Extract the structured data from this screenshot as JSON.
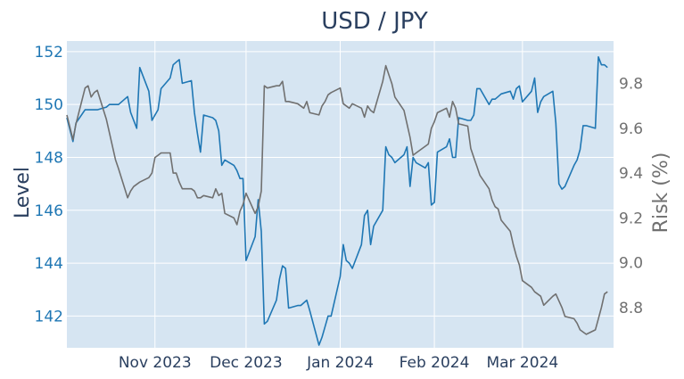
{
  "chart_data": {
    "type": "line",
    "title": "USD / JPY",
    "xlabel": "",
    "ylabel": "Level",
    "y2label": "Risk (%)",
    "grid": true,
    "x_range": [
      "2023-10-03",
      "2024-03-31"
    ],
    "ylim": [
      140.8,
      152.4
    ],
    "y2lim": [
      8.62,
      9.99
    ],
    "x_ticks": [
      {
        "date": "2023-11-01",
        "label": "Nov 2023"
      },
      {
        "date": "2023-12-01",
        "label": "Dec 2023"
      },
      {
        "date": "2024-01-01",
        "label": "Jan 2024"
      },
      {
        "date": "2024-02-01",
        "label": "Feb 2024"
      },
      {
        "date": "2024-03-01",
        "label": "Mar 2024"
      }
    ],
    "y_ticks": [
      142,
      144,
      146,
      148,
      150,
      152
    ],
    "y2_ticks": [
      8.8,
      9.0,
      9.2,
      9.4,
      9.6,
      9.8
    ],
    "y2_tick_labels": [
      "8.8",
      "9.0",
      "9.2",
      "9.4",
      "9.6",
      "9.8"
    ],
    "colors": {
      "level": "#1f77b4",
      "risk": "#707070",
      "plot_bg": "#d6e5f2",
      "grid": "#ffffff",
      "axis_text": "#2a3f5f",
      "level_text": "#1f77b4",
      "risk_text": "#707070"
    },
    "series": [
      {
        "axis": "left",
        "color": "#1f77b4",
        "x": [
          "2023-10-03",
          "2023-10-05",
          "2023-10-06",
          "2023-10-09",
          "2023-10-10",
          "2023-10-11",
          "2023-10-12",
          "2023-10-13",
          "2023-10-16",
          "2023-10-17",
          "2023-10-18",
          "2023-10-19",
          "2023-10-20",
          "2023-10-23",
          "2023-10-24",
          "2023-10-25",
          "2023-10-26",
          "2023-10-27",
          "2023-10-30",
          "2023-10-31",
          "2023-11-01",
          "2023-11-02",
          "2023-11-03",
          "2023-11-06",
          "2023-11-07",
          "2023-11-08",
          "2023-11-09",
          "2023-11-10",
          "2023-11-13",
          "2023-11-14",
          "2023-11-15",
          "2023-11-16",
          "2023-11-17",
          "2023-11-20",
          "2023-11-21",
          "2023-11-22",
          "2023-11-23",
          "2023-11-24",
          "2023-11-27",
          "2023-11-28",
          "2023-11-29",
          "2023-11-30",
          "2023-12-01",
          "2023-12-04",
          "2023-12-05",
          "2023-12-06",
          "2023-12-07",
          "2023-12-08",
          "2023-12-11",
          "2023-12-12",
          "2023-12-13",
          "2023-12-14",
          "2023-12-15",
          "2023-12-18",
          "2023-12-19",
          "2023-12-20",
          "2023-12-21",
          "2023-12-22",
          "2023-12-25",
          "2023-12-26",
          "2023-12-27",
          "2023-12-28",
          "2023-12-29",
          "2024-01-01",
          "2024-01-02",
          "2024-01-03",
          "2024-01-04",
          "2024-01-05",
          "2024-01-08",
          "2024-01-09",
          "2024-01-10",
          "2024-01-11",
          "2024-01-12",
          "2024-01-15",
          "2024-01-16",
          "2024-01-17",
          "2024-01-18",
          "2024-01-19",
          "2024-01-22",
          "2024-01-23",
          "2024-01-24",
          "2024-01-25",
          "2024-01-26",
          "2024-01-29",
          "2024-01-30",
          "2024-01-31",
          "2024-02-01",
          "2024-02-02",
          "2024-02-05",
          "2024-02-06",
          "2024-02-07",
          "2024-02-08",
          "2024-02-09",
          "2024-02-12",
          "2024-02-13",
          "2024-02-14",
          "2024-02-15",
          "2024-02-16",
          "2024-02-19",
          "2024-02-20",
          "2024-02-21",
          "2024-02-22",
          "2024-02-23",
          "2024-02-26",
          "2024-02-27",
          "2024-02-28",
          "2024-02-29",
          "2024-03-01",
          "2024-03-04",
          "2024-03-05",
          "2024-03-06",
          "2024-03-07",
          "2024-03-08",
          "2024-03-11",
          "2024-03-12",
          "2024-03-13",
          "2024-03-14",
          "2024-03-15",
          "2024-03-18",
          "2024-03-19",
          "2024-03-20",
          "2024-03-21",
          "2024-03-22",
          "2024-03-25",
          "2024-03-26",
          "2024-03-27",
          "2024-03-28",
          "2024-03-29"
        ],
        "values": [
          149.5,
          148.6,
          149.3,
          149.8,
          149.8,
          149.8,
          149.8,
          149.8,
          149.9,
          150.0,
          150.0,
          150.0,
          150.0,
          150.3,
          149.7,
          149.4,
          149.1,
          151.4,
          150.5,
          149.4,
          149.6,
          149.8,
          150.6,
          151.0,
          151.5,
          151.6,
          151.7,
          150.8,
          150.9,
          149.7,
          148.9,
          148.2,
          149.6,
          149.5,
          149.4,
          149.0,
          147.7,
          147.9,
          147.7,
          147.5,
          147.2,
          147.2,
          144.1,
          145.0,
          146.4,
          145.2,
          141.7,
          141.8,
          142.6,
          143.4,
          143.9,
          143.8,
          142.3,
          142.4,
          142.4,
          142.5,
          142.6,
          142.2,
          140.9,
          141.2,
          141.6,
          142.0,
          142.0,
          143.5,
          144.7,
          144.1,
          144.0,
          143.8,
          144.7,
          145.8,
          146.0,
          144.7,
          145.4,
          146.0,
          148.4,
          148.1,
          148.0,
          147.8,
          148.1,
          148.4,
          146.9,
          148.0,
          147.8,
          147.6,
          147.8,
          146.2,
          146.3,
          148.2,
          148.4,
          148.7,
          148.0,
          148.0,
          149.5,
          149.4,
          149.4,
          149.6,
          150.6,
          150.6,
          150.0,
          150.2,
          150.2,
          150.3,
          150.4,
          150.5,
          150.2,
          150.6,
          150.7,
          150.1,
          150.5,
          151.0,
          149.7,
          150.1,
          150.3,
          150.5,
          149.3,
          147.0,
          146.8,
          146.9,
          147.7,
          147.9,
          148.3,
          149.2,
          149.2,
          149.1,
          151.8,
          151.5,
          151.5,
          151.4
        ]
      },
      {
        "axis": "right",
        "color": "#707070",
        "x": [
          "2023-10-03",
          "2023-10-05",
          "2023-10-06",
          "2023-10-09",
          "2023-10-10",
          "2023-10-11",
          "2023-10-12",
          "2023-10-13",
          "2023-10-16",
          "2023-10-17",
          "2023-10-18",
          "2023-10-19",
          "2023-10-20",
          "2023-10-23",
          "2023-10-24",
          "2023-10-25",
          "2023-10-26",
          "2023-10-27",
          "2023-10-30",
          "2023-10-31",
          "2023-11-01",
          "2023-11-02",
          "2023-11-03",
          "2023-11-06",
          "2023-11-07",
          "2023-11-08",
          "2023-11-09",
          "2023-11-10",
          "2023-11-13",
          "2023-11-14",
          "2023-11-15",
          "2023-11-16",
          "2023-11-17",
          "2023-11-20",
          "2023-11-21",
          "2023-11-22",
          "2023-11-23",
          "2023-11-24",
          "2023-11-27",
          "2023-11-28",
          "2023-11-29",
          "2023-11-30",
          "2023-12-01",
          "2023-12-04",
          "2023-12-05",
          "2023-12-06",
          "2023-12-07",
          "2023-12-08",
          "2023-12-11",
          "2023-12-12",
          "2023-12-13",
          "2023-12-14",
          "2023-12-15",
          "2023-12-18",
          "2023-12-19",
          "2023-12-20",
          "2023-12-21",
          "2023-12-22",
          "2023-12-25",
          "2023-12-26",
          "2023-12-27",
          "2023-12-28",
          "2023-12-29",
          "2024-01-01",
          "2024-01-02",
          "2024-01-03",
          "2024-01-04",
          "2024-01-05",
          "2024-01-08",
          "2024-01-09",
          "2024-01-10",
          "2024-01-11",
          "2024-01-12",
          "2024-01-15",
          "2024-01-16",
          "2024-01-17",
          "2024-01-18",
          "2024-01-19",
          "2024-01-22",
          "2024-01-23",
          "2024-01-24",
          "2024-01-25",
          "2024-01-26",
          "2024-01-29",
          "2024-01-30",
          "2024-01-31",
          "2024-02-01",
          "2024-02-02",
          "2024-02-05",
          "2024-02-06",
          "2024-02-07",
          "2024-02-08",
          "2024-02-09",
          "2024-02-12",
          "2024-02-13",
          "2024-02-14",
          "2024-02-15",
          "2024-02-16",
          "2024-02-19",
          "2024-02-20",
          "2024-02-21",
          "2024-02-22",
          "2024-02-23",
          "2024-02-26",
          "2024-02-27",
          "2024-02-28",
          "2024-02-29",
          "2024-03-01",
          "2024-03-04",
          "2024-03-05",
          "2024-03-06",
          "2024-03-07",
          "2024-03-08",
          "2024-03-11",
          "2024-03-12",
          "2024-03-13",
          "2024-03-14",
          "2024-03-15",
          "2024-03-18",
          "2024-03-19",
          "2024-03-20",
          "2024-03-21",
          "2024-03-22",
          "2024-03-25",
          "2024-03-26",
          "2024-03-27",
          "2024-03-28",
          "2024-03-29"
        ],
        "values": [
          9.66,
          9.55,
          9.62,
          9.78,
          9.79,
          9.74,
          9.76,
          9.77,
          9.64,
          9.58,
          9.52,
          9.46,
          9.42,
          9.29,
          9.32,
          9.34,
          9.35,
          9.36,
          9.38,
          9.4,
          9.47,
          9.48,
          9.49,
          9.49,
          9.4,
          9.4,
          9.36,
          9.33,
          9.33,
          9.32,
          9.29,
          9.29,
          9.3,
          9.29,
          9.33,
          9.3,
          9.31,
          9.22,
          9.2,
          9.17,
          9.23,
          9.26,
          9.31,
          9.22,
          9.25,
          9.32,
          9.79,
          9.78,
          9.79,
          9.79,
          9.81,
          9.72,
          9.72,
          9.71,
          9.7,
          9.69,
          9.72,
          9.67,
          9.66,
          9.7,
          9.72,
          9.75,
          9.76,
          9.78,
          9.71,
          9.7,
          9.69,
          9.71,
          9.69,
          9.65,
          9.7,
          9.68,
          9.67,
          9.81,
          9.88,
          9.84,
          9.8,
          9.74,
          9.68,
          9.62,
          9.56,
          9.48,
          9.49,
          9.52,
          9.53,
          9.6,
          9.63,
          9.67,
          9.69,
          9.65,
          9.72,
          9.69,
          9.62,
          9.61,
          9.51,
          9.47,
          9.43,
          9.39,
          9.33,
          9.28,
          9.25,
          9.24,
          9.19,
          9.14,
          9.08,
          9.03,
          8.99,
          8.92,
          8.89,
          8.87,
          8.86,
          8.85,
          8.81,
          8.85,
          8.86,
          8.83,
          8.8,
          8.76,
          8.75,
          8.73,
          8.7,
          8.69,
          8.68,
          8.7,
          8.75,
          8.8,
          8.86,
          8.87
        ]
      }
    ]
  }
}
